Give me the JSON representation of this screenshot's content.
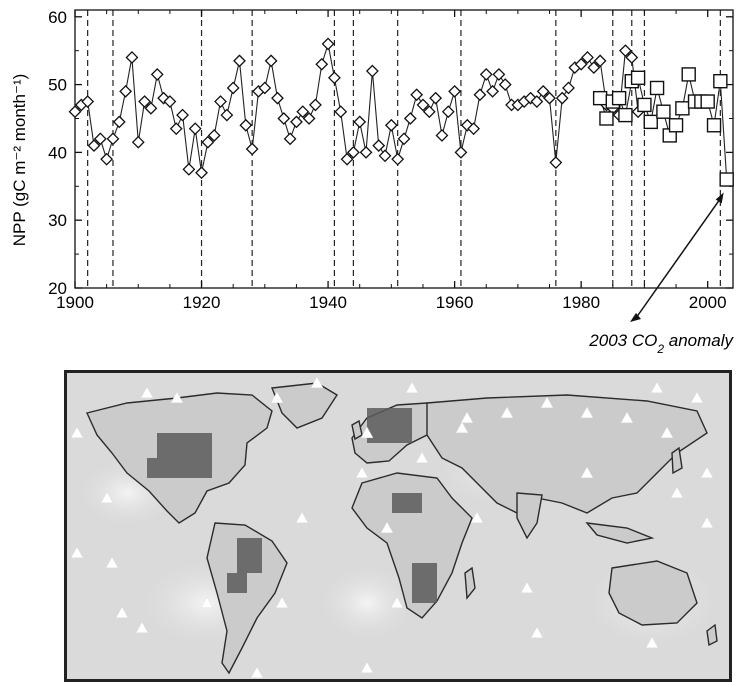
{
  "chart_data": {
    "type": "scatter",
    "ylabel": "NPP (gC m⁻² month⁻¹)",
    "xlim": [
      1900,
      2004
    ],
    "ylim": [
      20,
      61
    ],
    "x_ticks": [
      "1900",
      "1920",
      "1940",
      "1960",
      "1980",
      "2000"
    ],
    "y_ticks": [
      "20",
      "30",
      "40",
      "50",
      "60"
    ],
    "grid": false,
    "event_years": [
      1902,
      1906,
      1920,
      1928,
      1941,
      1944,
      1951,
      1961,
      1976,
      1985,
      1988,
      1990,
      2002
    ],
    "series": [
      {
        "marker": "diamond",
        "x": [
          1900,
          1901,
          1902,
          1903,
          1904,
          1905,
          1906,
          1907,
          1908,
          1909,
          1910,
          1911,
          1912,
          1913,
          1914,
          1915,
          1916,
          1917,
          1918,
          1919,
          1920,
          1921,
          1922,
          1923,
          1924,
          1925,
          1926,
          1927,
          1928,
          1929,
          1930,
          1931,
          1932,
          1933,
          1934,
          1935,
          1936,
          1937,
          1938,
          1939,
          1940,
          1941,
          1942,
          1943,
          1944,
          1945,
          1946,
          1947,
          1948,
          1949,
          1950,
          1951,
          1952,
          1953,
          1954,
          1955,
          1956,
          1957,
          1958,
          1959,
          1960,
          1961,
          1962,
          1963,
          1964,
          1965,
          1966,
          1967,
          1968,
          1969,
          1970,
          1971,
          1972,
          1973,
          1974,
          1975,
          1976,
          1977,
          1978,
          1979,
          1980,
          1981,
          1982,
          1983,
          1984,
          1985,
          1986,
          1987,
          1988,
          1989
        ],
        "y": [
          46,
          47,
          47.5,
          41,
          42,
          39,
          42,
          44.5,
          49,
          54,
          41.5,
          47.5,
          46.5,
          51.5,
          48,
          47.5,
          43.5,
          45.5,
          37.5,
          43.5,
          37,
          41.5,
          42.5,
          47.5,
          45.5,
          49.5,
          53.5,
          44,
          40.5,
          49,
          49.5,
          53.5,
          48,
          45,
          42,
          44.5,
          46,
          45,
          47,
          53,
          56,
          51,
          46,
          39,
          40,
          44.5,
          40,
          52,
          41,
          39.5,
          44,
          39,
          42,
          45,
          48.5,
          47,
          46,
          48,
          42.5,
          46,
          49,
          40,
          44,
          43.5,
          48.5,
          51.5,
          49,
          51.5,
          50,
          47,
          47,
          47.5,
          48,
          47.5,
          49,
          48,
          38.5,
          48,
          49.5,
          52.5,
          53,
          54,
          52.5,
          53.5,
          47,
          46.5,
          45.5,
          55,
          54,
          46
        ]
      },
      {
        "marker": "square",
        "x": [
          1983,
          1984,
          1985,
          1986,
          1987,
          1988,
          1989,
          1990,
          1991,
          1992,
          1993,
          1994,
          1995,
          1996,
          1997,
          1998,
          1999,
          2000,
          2001,
          2002,
          2003
        ],
        "y": [
          48,
          45,
          47.5,
          48,
          45.5,
          50.5,
          51,
          47,
          44.5,
          49.5,
          46,
          42.5,
          44,
          46.5,
          51.5,
          47.5,
          47.5,
          47.5,
          44,
          50.5,
          36
        ]
      }
    ],
    "annotations": [
      {
        "text": "2003 CO",
        "subscript": "2",
        "suffix": " anomaly",
        "x": 2003,
        "y": 36
      }
    ]
  },
  "map": {
    "style": "grayscale world map",
    "marker": "white triangles"
  }
}
